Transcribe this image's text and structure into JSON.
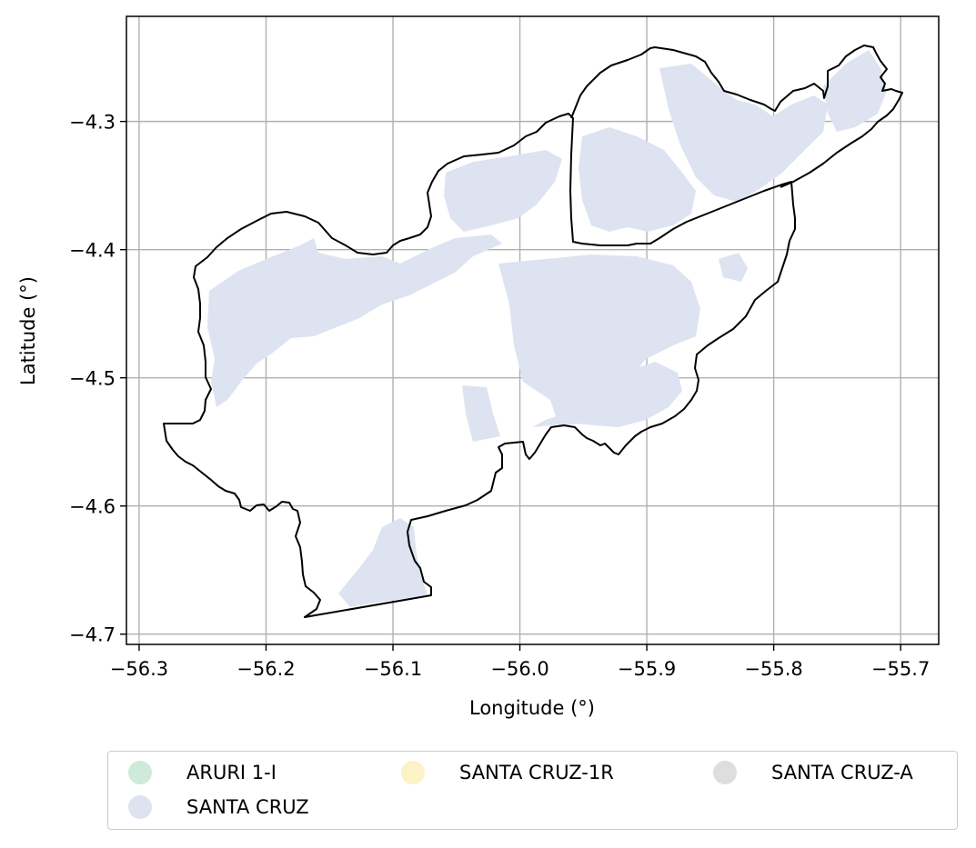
{
  "map": {
    "xlabel": "Longitude (°)",
    "ylabel": "Latitude (°)",
    "x_ticks": [
      "−56.3",
      "−56.2",
      "−56.1",
      "−56.0",
      "−55.9",
      "−55.8",
      "−55.7"
    ],
    "y_ticks": [
      "−4.3",
      "−4.4",
      "−4.5",
      "−4.6",
      "−4.7"
    ],
    "xlim": [
      -56.31,
      -55.67
    ],
    "ylim": [
      -4.708,
      -4.218
    ],
    "grid": true,
    "fill_color": "#dde3f0",
    "boundary_color": "#000000"
  },
  "legend": {
    "placement": "bottom-center",
    "items": [
      {
        "label": "ARURI 1-I",
        "color": "#cdeadb"
      },
      {
        "label": "SANTA CRUZ",
        "color": "#dde3f0"
      },
      {
        "label": "SANTA CRUZ-1R",
        "color": "#fdf2c5"
      },
      {
        "label": "SANTA CRUZ-A",
        "color": "#dedede"
      }
    ]
  }
}
